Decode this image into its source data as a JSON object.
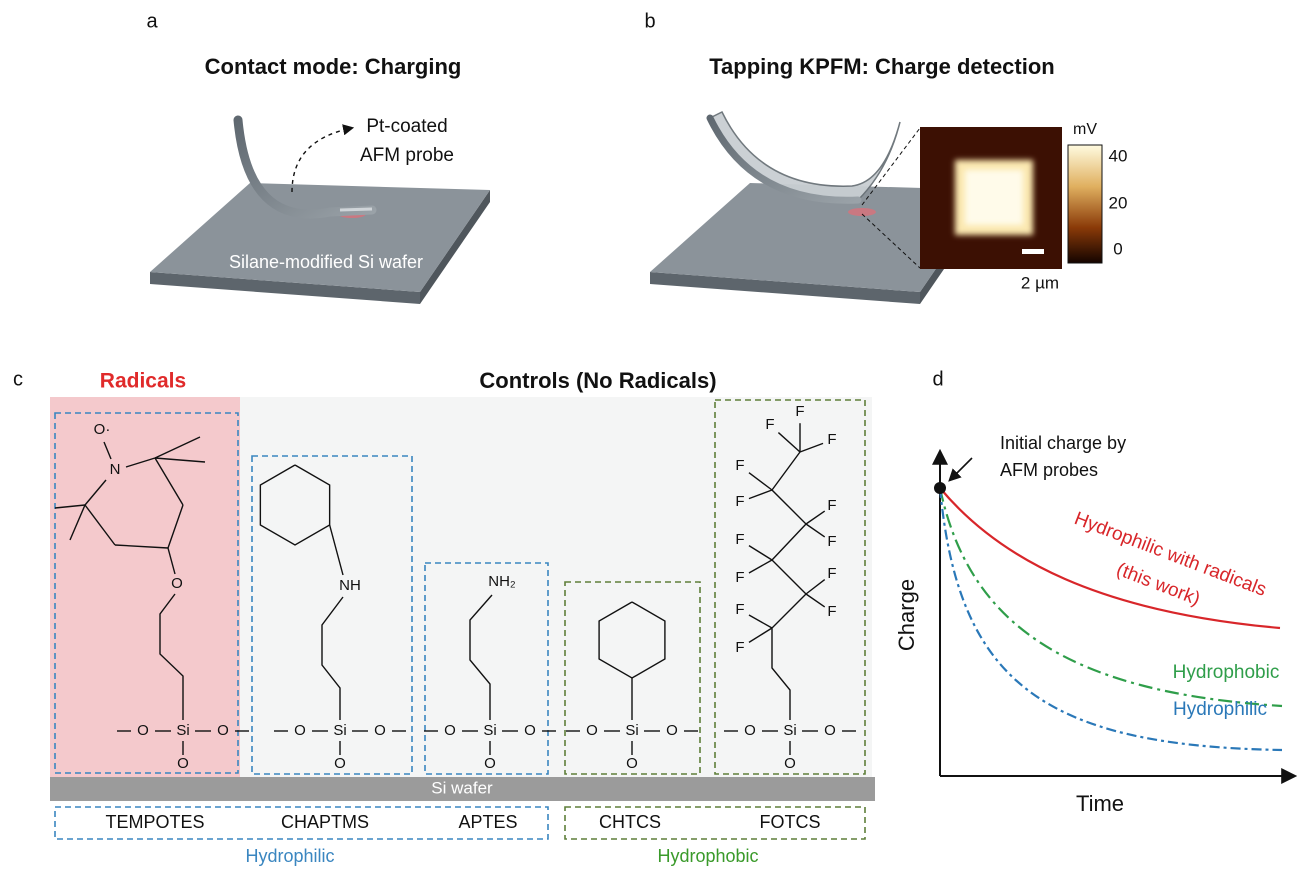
{
  "panel_a": {
    "label": "a",
    "title": "Contact mode: Charging",
    "probe_label": [
      "Pt-coated",
      "AFM probe"
    ],
    "substrate": "Silane-modified Si wafer"
  },
  "panel_b": {
    "label": "b",
    "title": "Tapping KPFM: Charge detection",
    "colorbar": {
      "unit": "mV",
      "ticks": [
        "40",
        "20",
        "0"
      ]
    },
    "scale_bar": "2 µm"
  },
  "panel_c": {
    "label": "c",
    "radicals_label": "Radicals",
    "title": "Controls (No Radicals)",
    "substrate": "Si wafer",
    "molecules": [
      {
        "name": "TEMPOTES",
        "atoms": [
          "O·",
          "N",
          "O",
          "O",
          "Si",
          "O",
          "O"
        ]
      },
      {
        "name": "CHAPTMS",
        "atoms": [
          "NH",
          "O",
          "Si",
          "O",
          "O"
        ]
      },
      {
        "name": "APTES",
        "atoms": [
          "NH₂",
          "O",
          "Si",
          "O",
          "O"
        ]
      },
      {
        "name": "CHTCS",
        "atoms": [
          "O",
          "Si",
          "O",
          "O"
        ]
      },
      {
        "name": "FOTCS",
        "atoms": [
          "F",
          "F",
          "F",
          "F",
          "F",
          "F",
          "F",
          "F",
          "F",
          "F",
          "F",
          "F",
          "F",
          "O",
          "Si",
          "O",
          "O"
        ]
      }
    ],
    "groups": [
      "Hydrophilic",
      "Hydrophobic"
    ]
  },
  "panel_d": {
    "label": "d",
    "annotation": [
      "Initial charge by",
      "AFM probes"
    ],
    "y_label": "Charge",
    "x_label": "Time",
    "curve_labels": [
      "Hydrophilic with radicals",
      "(this work)",
      "Hydrophobic",
      "Hydrophilic"
    ]
  }
}
